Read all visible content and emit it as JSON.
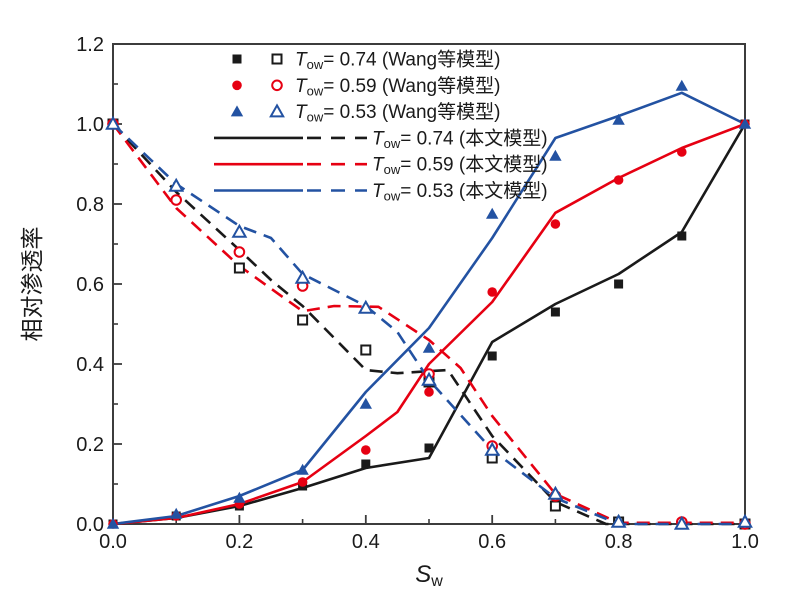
{
  "chart_data": {
    "type": "line+scatter",
    "title": "",
    "xlabel": {
      "base": "S",
      "sub": "w"
    },
    "ylabel": "相对渗透率",
    "xlim": [
      0,
      1.0
    ],
    "ylim": [
      0,
      1.2
    ],
    "grid": false,
    "legend_position": "top-center-inside",
    "colors": {
      "black": "#1a1a1a",
      "red": "#e60012",
      "blue": "#2352a2",
      "frame": "#3c3c3c"
    },
    "xticks": {
      "major": [
        0,
        0.2,
        0.4,
        0.6,
        0.8,
        1.0
      ],
      "labels": [
        "0.0",
        "0.2",
        "0.4",
        "0.6",
        "0.8",
        "1.0"
      ],
      "minor": [
        0.1,
        0.3,
        0.5,
        0.7,
        0.9
      ]
    },
    "yticks": {
      "major": [
        0,
        0.2,
        0.4,
        0.6,
        0.8,
        1.0,
        1.2
      ],
      "labels": [
        "0.0",
        "0.2",
        "0.4",
        "0.6",
        "0.8",
        "1.0",
        "1.2"
      ],
      "minor": [
        0.1,
        0.3,
        0.5,
        0.7,
        0.9,
        1.1
      ]
    },
    "legend": [
      {
        "swatch": "marker-pair",
        "marker": "square",
        "color": "black",
        "label_t": "T",
        "label_sub": "ow",
        "label_text": "= 0.74 (Wang等模型)"
      },
      {
        "swatch": "marker-pair",
        "marker": "circle",
        "color": "red",
        "label_t": "T",
        "label_sub": "ow",
        "label_text": "= 0.59  (Wang等模型)"
      },
      {
        "swatch": "marker-pair",
        "marker": "triangle",
        "color": "blue",
        "label_t": "T",
        "label_sub": "ow",
        "label_text": "= 0.53 (Wang等模型)"
      },
      {
        "swatch": "line-pair",
        "color": "black",
        "label_t": "T",
        "label_sub": "ow",
        "label_text": "= 0.74 (本文模型)"
      },
      {
        "swatch": "line-pair",
        "color": "red",
        "label_t": "T",
        "label_sub": "ow",
        "label_text": "= 0.59 (本文模型)"
      },
      {
        "swatch": "line-pair",
        "color": "blue",
        "label_t": "T",
        "label_sub": "ow",
        "label_text": "= 0.53 (本文模型)"
      }
    ],
    "series": [
      {
        "name": "Tow=0.74 (Wang等模型) 上升支 实心方块",
        "kind": "scatter",
        "marker": "square",
        "fill": "filled",
        "color": "black",
        "points": [
          [
            0,
            0
          ],
          [
            0.1,
            0.02
          ],
          [
            0.2,
            0.045
          ],
          [
            0.3,
            0.095
          ],
          [
            0.4,
            0.15
          ],
          [
            0.5,
            0.19
          ],
          [
            0.6,
            0.42
          ],
          [
            0.7,
            0.53
          ],
          [
            0.8,
            0.6
          ],
          [
            0.9,
            0.72
          ],
          [
            1.0,
            1.0
          ]
        ]
      },
      {
        "name": "Tow=0.74 (Wang等模型) 下降支 空心方块",
        "kind": "scatter",
        "marker": "square",
        "fill": "open",
        "color": "black",
        "points": [
          [
            0,
            1.0
          ],
          [
            0.2,
            0.64
          ],
          [
            0.3,
            0.51
          ],
          [
            0.4,
            0.435
          ],
          [
            0.5,
            0.355
          ],
          [
            0.6,
            0.165
          ],
          [
            0.7,
            0.045
          ],
          [
            0.8,
            0.005
          ],
          [
            1.0,
            0
          ]
        ]
      },
      {
        "name": "Tow=0.59 (Wang等模型) 上升支 实心圆",
        "kind": "scatter",
        "marker": "circle",
        "fill": "filled",
        "color": "red",
        "points": [
          [
            0,
            0
          ],
          [
            0.1,
            0.02
          ],
          [
            0.2,
            0.05
          ],
          [
            0.3,
            0.105
          ],
          [
            0.4,
            0.185
          ],
          [
            0.5,
            0.33
          ],
          [
            0.6,
            0.58
          ],
          [
            0.7,
            0.75
          ],
          [
            0.8,
            0.86
          ],
          [
            0.9,
            0.93
          ],
          [
            1.0,
            1.0
          ]
        ]
      },
      {
        "name": "Tow=0.59 (Wang等模型) 下降支 空心圆",
        "kind": "scatter",
        "marker": "circle",
        "fill": "open",
        "color": "red",
        "points": [
          [
            0,
            1.0
          ],
          [
            0.1,
            0.81
          ],
          [
            0.2,
            0.68
          ],
          [
            0.3,
            0.595
          ],
          [
            0.5,
            0.375
          ],
          [
            0.6,
            0.195
          ],
          [
            0.7,
            0.07
          ],
          [
            0.9,
            0.005
          ],
          [
            1.0,
            0
          ]
        ]
      },
      {
        "name": "Tow=0.53 (Wang等模型) 上升支 实心三角",
        "kind": "scatter",
        "marker": "triangle",
        "fill": "filled",
        "color": "blue",
        "points": [
          [
            0,
            0
          ],
          [
            0.1,
            0.025
          ],
          [
            0.2,
            0.065
          ],
          [
            0.3,
            0.135
          ],
          [
            0.4,
            0.3
          ],
          [
            0.5,
            0.44
          ],
          [
            0.6,
            0.775
          ],
          [
            0.7,
            0.92
          ],
          [
            0.8,
            1.01
          ],
          [
            0.9,
            1.095
          ],
          [
            1.0,
            1.0
          ]
        ]
      },
      {
        "name": "Tow=0.53 (Wang等模型) 下降支 空心三角",
        "kind": "scatter",
        "marker": "triangle",
        "fill": "open",
        "color": "blue",
        "points": [
          [
            0,
            1.0
          ],
          [
            0.1,
            0.845
          ],
          [
            0.2,
            0.73
          ],
          [
            0.3,
            0.615
          ],
          [
            0.4,
            0.54
          ],
          [
            0.5,
            0.36
          ],
          [
            0.6,
            0.185
          ],
          [
            0.7,
            0.075
          ],
          [
            0.8,
            0.005
          ],
          [
            0.9,
            0
          ],
          [
            1.0,
            0.005
          ]
        ]
      },
      {
        "name": "Tow=0.74 (本文模型) 上升支 实线",
        "kind": "line",
        "style": "solid",
        "color": "black",
        "points": [
          [
            0,
            0
          ],
          [
            0.1,
            0.015
          ],
          [
            0.2,
            0.045
          ],
          [
            0.3,
            0.09
          ],
          [
            0.4,
            0.14
          ],
          [
            0.5,
            0.165
          ],
          [
            0.6,
            0.455
          ],
          [
            0.7,
            0.55
          ],
          [
            0.8,
            0.625
          ],
          [
            0.9,
            0.73
          ],
          [
            1.0,
            1.0
          ]
        ]
      },
      {
        "name": "Tow=0.74 (本文模型) 下降支 虚线",
        "kind": "line",
        "style": "dashed",
        "color": "black",
        "points": [
          [
            0,
            1.0
          ],
          [
            0.1,
            0.83
          ],
          [
            0.2,
            0.685
          ],
          [
            0.25,
            0.61
          ],
          [
            0.3,
            0.545
          ],
          [
            0.4,
            0.385
          ],
          [
            0.45,
            0.377
          ],
          [
            0.53,
            0.385
          ],
          [
            0.6,
            0.22
          ],
          [
            0.7,
            0.055
          ],
          [
            0.78,
            0
          ],
          [
            1.0,
            0
          ]
        ]
      },
      {
        "name": "Tow=0.59 (本文模型) 上升支 实线",
        "kind": "line",
        "style": "solid",
        "color": "red",
        "points": [
          [
            0,
            0
          ],
          [
            0.1,
            0.015
          ],
          [
            0.2,
            0.05
          ],
          [
            0.3,
            0.105
          ],
          [
            0.4,
            0.22
          ],
          [
            0.45,
            0.28
          ],
          [
            0.5,
            0.4
          ],
          [
            0.6,
            0.555
          ],
          [
            0.7,
            0.778
          ],
          [
            0.8,
            0.865
          ],
          [
            0.9,
            0.94
          ],
          [
            1.0,
            1.0
          ]
        ]
      },
      {
        "name": "Tow=0.59 (本文模型) 下降支 虚线",
        "kind": "line",
        "style": "dashed",
        "color": "red",
        "points": [
          [
            0,
            1.0
          ],
          [
            0.1,
            0.79
          ],
          [
            0.2,
            0.645
          ],
          [
            0.3,
            0.532
          ],
          [
            0.35,
            0.545
          ],
          [
            0.42,
            0.543
          ],
          [
            0.5,
            0.46
          ],
          [
            0.55,
            0.39
          ],
          [
            0.6,
            0.27
          ],
          [
            0.7,
            0.075
          ],
          [
            0.8,
            0.003
          ],
          [
            1.0,
            0.003
          ]
        ]
      },
      {
        "name": "Tow=0.53 (本文模型) 上升支 实线",
        "kind": "line",
        "style": "solid",
        "color": "blue",
        "points": [
          [
            0,
            0
          ],
          [
            0.1,
            0.02
          ],
          [
            0.2,
            0.07
          ],
          [
            0.3,
            0.135
          ],
          [
            0.4,
            0.33
          ],
          [
            0.5,
            0.49
          ],
          [
            0.6,
            0.715
          ],
          [
            0.7,
            0.965
          ],
          [
            0.8,
            1.02
          ],
          [
            0.9,
            1.078
          ],
          [
            1.0,
            1.0
          ]
        ]
      },
      {
        "name": "Tow=0.53 (本文模型) 下降支 虚线",
        "kind": "line",
        "style": "dashed",
        "color": "blue",
        "points": [
          [
            0,
            1.0
          ],
          [
            0.1,
            0.85
          ],
          [
            0.2,
            0.745
          ],
          [
            0.25,
            0.715
          ],
          [
            0.3,
            0.625
          ],
          [
            0.4,
            0.545
          ],
          [
            0.45,
            0.48
          ],
          [
            0.5,
            0.36
          ],
          [
            0.6,
            0.185
          ],
          [
            0.7,
            0.065
          ],
          [
            0.8,
            0
          ],
          [
            1.0,
            0
          ]
        ]
      }
    ]
  }
}
